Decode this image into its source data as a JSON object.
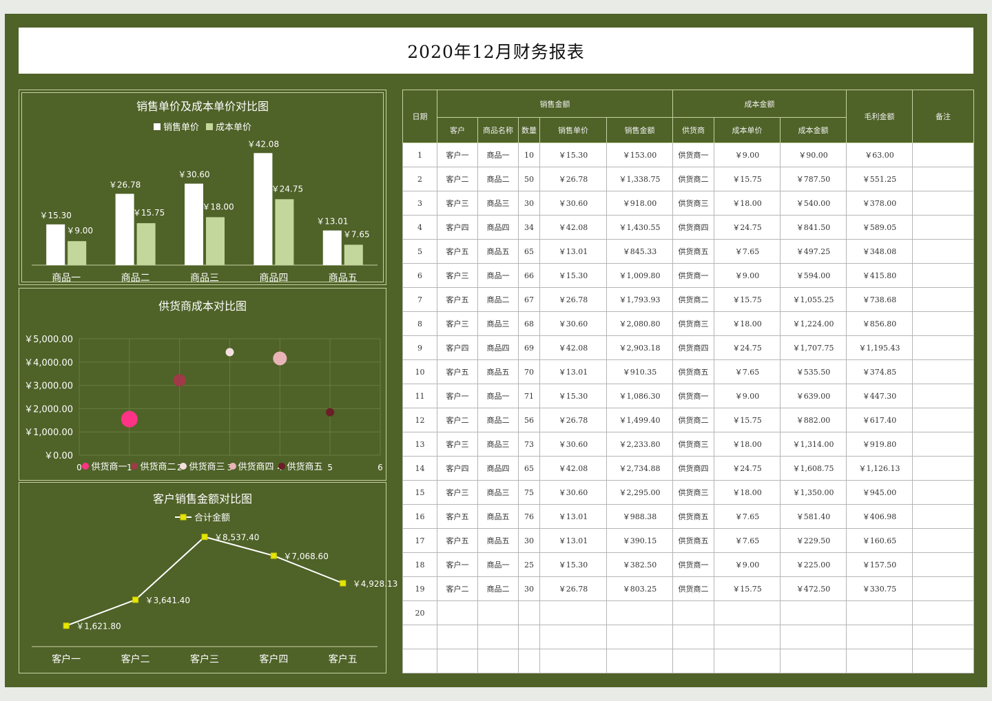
{
  "title": "2020年12月财务报表",
  "colors": {
    "background_green": "#4f6228",
    "bar_sales": "#ffffff",
    "bar_cost": "#c3d69b",
    "line": "#ffffff",
    "line_marker": "#e6e600"
  },
  "chart_data": [
    {
      "type": "bar",
      "title": "销售单价及成本单价对比图",
      "categories": [
        "商品一",
        "商品二",
        "商品三",
        "商品四",
        "商品五"
      ],
      "series": [
        {
          "name": "销售单价",
          "values": [
            15.3,
            26.78,
            30.6,
            42.08,
            13.01
          ],
          "labels": [
            "￥15.30",
            "￥26.78",
            "￥30.60",
            "￥42.08",
            "￥13.01"
          ]
        },
        {
          "name": "成本单价",
          "values": [
            9.0,
            15.75,
            18.0,
            24.75,
            7.65
          ],
          "labels": [
            "￥9.00",
            "￥15.75",
            "￥18.00",
            "￥24.75",
            "￥7.65"
          ]
        }
      ],
      "ylim": [
        0,
        45
      ]
    },
    {
      "type": "scatter",
      "title": "供货商成本对比图",
      "x_ticks": [
        "0",
        "1",
        "2",
        "3",
        "4",
        "5",
        "6"
      ],
      "y_ticks": [
        "￥0.00",
        "￥1,000.00",
        "￥2,000.00",
        "￥3,000.00",
        "￥4,000.00",
        "￥5,000.00"
      ],
      "xlim": [
        0,
        6
      ],
      "ylim": [
        0,
        5000
      ],
      "grid": true,
      "series": [
        {
          "name": "供货商一",
          "x": 1,
          "y": 1548,
          "size": 12,
          "color": "#ff3385"
        },
        {
          "name": "供货商二",
          "x": 2,
          "y": 3215,
          "size": 9,
          "color": "#a03a48"
        },
        {
          "name": "供货商三",
          "x": 3,
          "y": 4425,
          "size": 6,
          "color": "#f4dfe0"
        },
        {
          "name": "供货商四",
          "x": 4,
          "y": 4158,
          "size": 10,
          "color": "#e8b4b8"
        },
        {
          "name": "供货商五",
          "x": 5,
          "y": 1845,
          "size": 6,
          "color": "#6b1e28"
        }
      ]
    },
    {
      "type": "line",
      "title": "客户销售金额对比图",
      "categories": [
        "客户一",
        "客户二",
        "客户三",
        "客户四",
        "客户五"
      ],
      "series": [
        {
          "name": "合计金额",
          "values": [
            1621.8,
            3641.4,
            8537.4,
            7068.6,
            4928.13
          ],
          "labels": [
            "￥1,621.80",
            "￥3,641.40",
            "￥8,537.40",
            "￥7,068.60",
            "￥4,928.13"
          ]
        }
      ],
      "ylim": [
        0,
        9000
      ]
    }
  ],
  "table": {
    "header_top": {
      "date": "日期",
      "sales_group": "销售金额",
      "cost_group": "成本金额",
      "gross_profit": "毛利金额",
      "note": "备注"
    },
    "header_sub": [
      "客户",
      "商品名称",
      "数量",
      "销售单价",
      "销售金额",
      "供货商",
      "成本单价",
      "成本金额"
    ],
    "rows": [
      [
        "1",
        "客户一",
        "商品一",
        "10",
        "￥15.30",
        "￥153.00",
        "供货商一",
        "￥9.00",
        "￥90.00",
        "￥63.00",
        ""
      ],
      [
        "2",
        "客户二",
        "商品二",
        "50",
        "￥26.78",
        "￥1,338.75",
        "供货商二",
        "￥15.75",
        "￥787.50",
        "￥551.25",
        ""
      ],
      [
        "3",
        "客户三",
        "商品三",
        "30",
        "￥30.60",
        "￥918.00",
        "供货商三",
        "￥18.00",
        "￥540.00",
        "￥378.00",
        ""
      ],
      [
        "4",
        "客户四",
        "商品四",
        "34",
        "￥42.08",
        "￥1,430.55",
        "供货商四",
        "￥24.75",
        "￥841.50",
        "￥589.05",
        ""
      ],
      [
        "5",
        "客户五",
        "商品五",
        "65",
        "￥13.01",
        "￥845.33",
        "供货商五",
        "￥7.65",
        "￥497.25",
        "￥348.08",
        ""
      ],
      [
        "6",
        "客户三",
        "商品一",
        "66",
        "￥15.30",
        "￥1,009.80",
        "供货商一",
        "￥9.00",
        "￥594.00",
        "￥415.80",
        ""
      ],
      [
        "7",
        "客户五",
        "商品二",
        "67",
        "￥26.78",
        "￥1,793.93",
        "供货商二",
        "￥15.75",
        "￥1,055.25",
        "￥738.68",
        ""
      ],
      [
        "8",
        "客户三",
        "商品三",
        "68",
        "￥30.60",
        "￥2,080.80",
        "供货商三",
        "￥18.00",
        "￥1,224.00",
        "￥856.80",
        ""
      ],
      [
        "9",
        "客户四",
        "商品四",
        "69",
        "￥42.08",
        "￥2,903.18",
        "供货商四",
        "￥24.75",
        "￥1,707.75",
        "￥1,195.43",
        ""
      ],
      [
        "10",
        "客户五",
        "商品五",
        "70",
        "￥13.01",
        "￥910.35",
        "供货商五",
        "￥7.65",
        "￥535.50",
        "￥374.85",
        ""
      ],
      [
        "11",
        "客户一",
        "商品一",
        "71",
        "￥15.30",
        "￥1,086.30",
        "供货商一",
        "￥9.00",
        "￥639.00",
        "￥447.30",
        ""
      ],
      [
        "12",
        "客户二",
        "商品二",
        "56",
        "￥26.78",
        "￥1,499.40",
        "供货商二",
        "￥15.75",
        "￥882.00",
        "￥617.40",
        ""
      ],
      [
        "13",
        "客户三",
        "商品三",
        "73",
        "￥30.60",
        "￥2,233.80",
        "供货商三",
        "￥18.00",
        "￥1,314.00",
        "￥919.80",
        ""
      ],
      [
        "14",
        "客户四",
        "商品四",
        "65",
        "￥42.08",
        "￥2,734.88",
        "供货商四",
        "￥24.75",
        "￥1,608.75",
        "￥1,126.13",
        ""
      ],
      [
        "15",
        "客户三",
        "商品三",
        "75",
        "￥30.60",
        "￥2,295.00",
        "供货商三",
        "￥18.00",
        "￥1,350.00",
        "￥945.00",
        ""
      ],
      [
        "16",
        "客户五",
        "商品五",
        "76",
        "￥13.01",
        "￥988.38",
        "供货商五",
        "￥7.65",
        "￥581.40",
        "￥406.98",
        ""
      ],
      [
        "17",
        "客户五",
        "商品五",
        "30",
        "￥13.01",
        "￥390.15",
        "供货商五",
        "￥7.65",
        "￥229.50",
        "￥160.65",
        ""
      ],
      [
        "18",
        "客户一",
        "商品一",
        "25",
        "￥15.30",
        "￥382.50",
        "供货商一",
        "￥9.00",
        "￥225.00",
        "￥157.50",
        ""
      ],
      [
        "19",
        "客户二",
        "商品二",
        "30",
        "￥26.78",
        "￥803.25",
        "供货商二",
        "￥15.75",
        "￥472.50",
        "￥330.75",
        ""
      ],
      [
        "20",
        "",
        "",
        "",
        "",
        "",
        "",
        "",
        "",
        "",
        ""
      ],
      [
        "",
        "",
        "",
        "",
        "",
        "",
        "",
        "",
        "",
        "",
        ""
      ],
      [
        "",
        "",
        "",
        "",
        "",
        "",
        "",
        "",
        "",
        "",
        ""
      ]
    ]
  }
}
